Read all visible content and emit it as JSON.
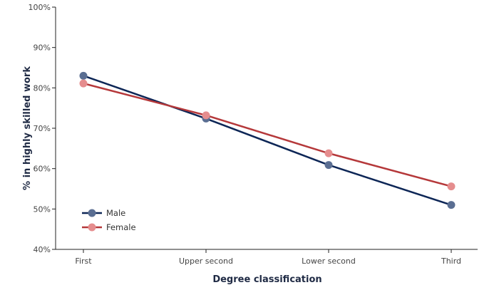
{
  "chart_data": {
    "type": "line",
    "categories": [
      "First",
      "Upper second",
      "Lower second",
      "Third"
    ],
    "series": [
      {
        "name": "Male",
        "values": [
          83,
          72.4,
          60.9,
          51.0
        ],
        "line_color": "#0d2656",
        "marker_color": "#5a6e92"
      },
      {
        "name": "Female",
        "values": [
          81.1,
          73.2,
          63.8,
          55.6
        ],
        "line_color": "#b5383a",
        "marker_color": "#e58d8e"
      }
    ],
    "xlabel": "Degree classification",
    "ylabel": "% in highly skilled work",
    "ylim": [
      40,
      100
    ],
    "yticks": [
      40,
      50,
      60,
      70,
      80,
      90,
      100
    ],
    "ytick_labels": [
      "40%",
      "50%",
      "60%",
      "70%",
      "80%",
      "90%",
      "100%"
    ],
    "grid": false,
    "legend_position": "bottom-left"
  }
}
